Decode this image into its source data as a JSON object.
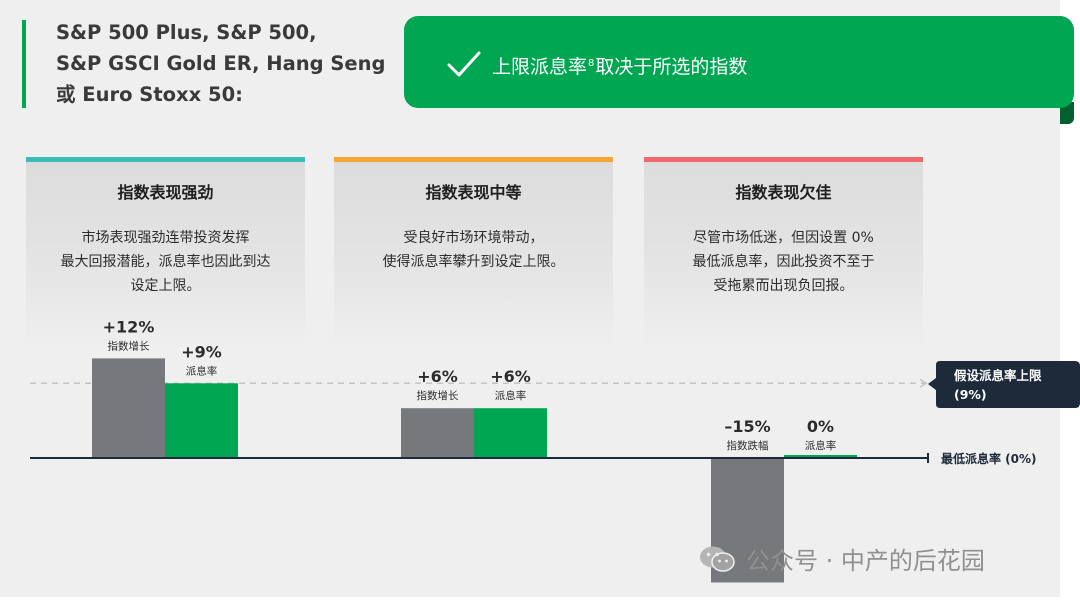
{
  "header": {
    "lines": [
      "S&P 500 Plus, S&P 500,",
      "S&P GSCI Gold ER, Hang Seng",
      "或 Euro Stoxx 50:"
    ]
  },
  "banner": {
    "text_before": "上限派息率",
    "superscript": "8",
    "text_after": "取决于所选的指数",
    "icon": "checkmark-icon"
  },
  "scenarios": [
    {
      "title": "指数表现强劲",
      "stripe_color": "#3bbcb9",
      "description": [
        "市场表现强劲连带投资发挥",
        "最大回报潜能，派息率也因此到达",
        "设定上限。"
      ]
    },
    {
      "title": "指数表现中等",
      "stripe_color": "#f5a535",
      "description": [
        "受良好市场环境带动，",
        "使得派息率攀升到设定上限。"
      ]
    },
    {
      "title": "指数表现欠佳",
      "stripe_color": "#f0686c",
      "description": [
        "尽管市场低迷，但因设置 0%",
        "最低派息率，因此投资不至于",
        "受拖累而出现负回报。"
      ]
    }
  ],
  "chart_data": {
    "type": "bar",
    "categories": [
      "指数表现强劲",
      "指数表现中等",
      "指数表现欠佳"
    ],
    "series": [
      {
        "name": "index",
        "color": "#77787b",
        "values": [
          12,
          6,
          -15
        ],
        "value_labels": [
          "+12%",
          "+6%",
          "–15%"
        ],
        "sub_labels": [
          "指数增长",
          "指数增长",
          "指数跌幅"
        ]
      },
      {
        "name": "payout",
        "color": "#00a651",
        "values": [
          9,
          6,
          0
        ],
        "value_labels": [
          "+9%",
          "+6%",
          "0%"
        ],
        "sub_labels": [
          "派息率",
          "派息率",
          "派息率"
        ]
      }
    ],
    "cap": {
      "value": 9,
      "label_line1": "假设派息率上限",
      "label_line2": "(9%)"
    },
    "floor": {
      "value": 0,
      "label": "最低派息率 (0%)"
    }
  },
  "watermark": {
    "text": "公众号 · 中产的后花园",
    "icon": "wechat-icon"
  },
  "colors": {
    "green": "#00a651",
    "dark_green": "#00602e",
    "bar_gray": "#77787b",
    "navy": "#1c2a3a",
    "panel": "#efefef"
  }
}
